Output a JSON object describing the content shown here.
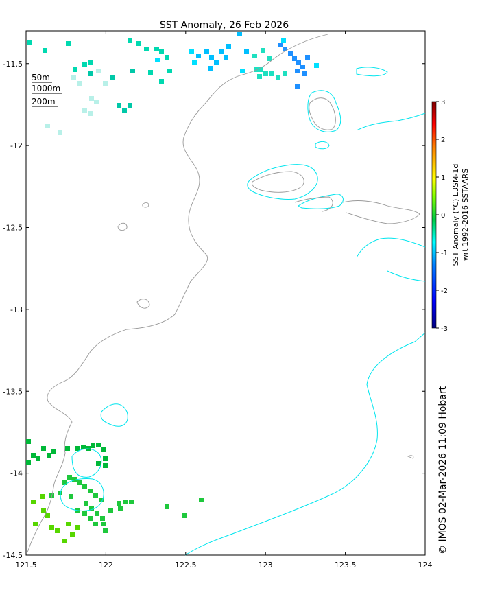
{
  "title": "SST Anomaly, 26 Feb 2026",
  "credit": "© IMOS 02-Mar-2026 11:09 Hobart",
  "contour_legend": [
    {
      "label": "50m",
      "color": "#000000"
    },
    {
      "label": "1000m",
      "color": "#000000"
    },
    {
      "label": "200m",
      "color": "#000000"
    }
  ],
  "colorbar": {
    "title_line1": "SST Anomaly (°C) L3SM-1d",
    "title_line2": "wrt 1992-2016 SSTAARS",
    "ticks": [
      "3",
      "2",
      "1",
      "0",
      "-1",
      "-2",
      "-3"
    ],
    "range": [
      -3,
      3
    ],
    "colors": [
      "#00007f",
      "#0000ff",
      "#007fff",
      "#00ffff",
      "#00cc44",
      "#7fff00",
      "#ffff00",
      "#ff7f00",
      "#ff0000",
      "#7f0000"
    ]
  },
  "axes": {
    "x_ticks": [
      "121.5",
      "122",
      "122.5",
      "123",
      "123.5",
      "124"
    ],
    "y_ticks": [
      "-11.5",
      "-12",
      "-12.5",
      "-13",
      "-13.5",
      "-14",
      "-14.5"
    ],
    "xlim": [
      121.5,
      124
    ],
    "ylim": [
      -14.5,
      -11.3
    ]
  },
  "colors": {
    "coastline": "#999999",
    "isobath_200m": "#00e5ee",
    "frame": "#000000"
  }
}
